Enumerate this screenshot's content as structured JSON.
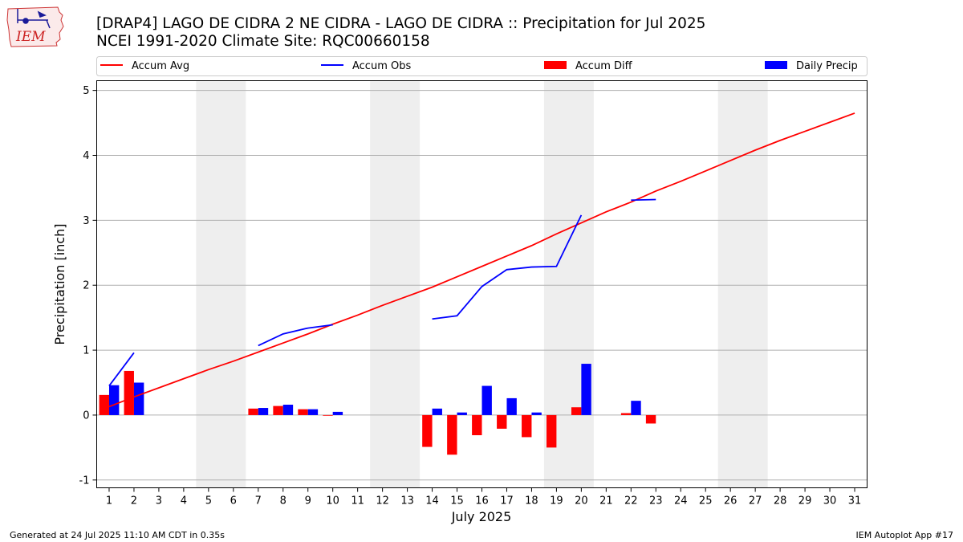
{
  "title_line1": "[DRAP4] LAGO DE CIDRA 2 NE CIDRA - LAGO DE CIDRA :: Precipitation for Jul 2025",
  "title_line2": "NCEI 1991-2020 Climate Site: RQC00660158",
  "logo_text": "IEM",
  "footer_left": "Generated at 24 Jul 2025 11:10 AM CDT in 0.35s",
  "footer_right": "IEM Autoplot App #17",
  "colors": {
    "accum_avg": "#ff0000",
    "accum_obs": "#0000ff",
    "accum_diff": "#ff0000",
    "daily_precip": "#0000ff",
    "weekend_shade": "#eeeeee",
    "grid": "#b0b0b0",
    "logo": "#cc2222"
  },
  "legend": [
    {
      "label": "Accum Avg",
      "kind": "line",
      "color": "#ff0000"
    },
    {
      "label": "Accum Obs",
      "kind": "line",
      "color": "#0000ff"
    },
    {
      "label": "Accum Diff",
      "kind": "bar",
      "color": "#ff0000"
    },
    {
      "label": "Daily Precip",
      "kind": "bar",
      "color": "#0000ff"
    }
  ],
  "chart_data": {
    "type": "bar",
    "xlabel": "July 2025",
    "ylabel": "Precipitation [inch]",
    "xlim": [
      0.5,
      31.5
    ],
    "ylim": [
      -1.12,
      5.15
    ],
    "yticks": [
      -1,
      0,
      1,
      2,
      3,
      4,
      5
    ],
    "xticks": [
      1,
      2,
      3,
      4,
      5,
      6,
      7,
      8,
      9,
      10,
      11,
      12,
      13,
      14,
      15,
      16,
      17,
      18,
      19,
      20,
      21,
      22,
      23,
      24,
      25,
      26,
      27,
      28,
      29,
      30,
      31
    ],
    "grid": "horizontal",
    "legend_position": "top",
    "weekend_shading": [
      [
        4.5,
        6.5
      ],
      [
        11.5,
        13.5
      ],
      [
        18.5,
        20.5
      ],
      [
        25.5,
        27.5
      ]
    ],
    "accum_avg": {
      "name": "Accum Avg",
      "x": [
        1,
        2,
        3,
        4,
        5,
        6,
        7,
        8,
        9,
        10,
        11,
        12,
        13,
        14,
        15,
        16,
        17,
        18,
        19,
        20,
        21,
        22,
        23,
        24,
        25,
        26,
        27,
        28,
        29,
        30,
        31
      ],
      "values": [
        0.13,
        0.28,
        0.42,
        0.56,
        0.7,
        0.83,
        0.97,
        1.11,
        1.25,
        1.4,
        1.54,
        1.69,
        1.83,
        1.97,
        2.13,
        2.29,
        2.45,
        2.61,
        2.79,
        2.96,
        3.13,
        3.28,
        3.45,
        3.6,
        3.76,
        3.92,
        4.08,
        4.23,
        4.37,
        4.51,
        4.65
      ]
    },
    "accum_obs": {
      "name": "Accum Obs",
      "segments": [
        {
          "x": [
            1,
            2
          ],
          "values": [
            0.45,
            0.96
          ]
        },
        {
          "x": [
            7,
            8,
            9,
            10
          ],
          "values": [
            1.07,
            1.25,
            1.34,
            1.39
          ]
        },
        {
          "x": [
            14,
            15,
            16,
            17,
            18,
            19,
            20
          ],
          "values": [
            1.48,
            1.53,
            1.98,
            2.24,
            2.28,
            2.29,
            3.08
          ]
        },
        {
          "x": [
            22,
            23
          ],
          "values": [
            3.31,
            3.32
          ]
        }
      ]
    },
    "accum_diff": {
      "name": "Accum Diff",
      "x": [
        1,
        2,
        7,
        8,
        9,
        10,
        14,
        15,
        16,
        17,
        18,
        19,
        20,
        22,
        23
      ],
      "values": [
        0.31,
        0.68,
        0.1,
        0.14,
        0.09,
        -0.01,
        -0.49,
        -0.61,
        -0.31,
        -0.21,
        -0.34,
        -0.5,
        0.12,
        0.03,
        -0.13
      ]
    },
    "daily_precip": {
      "name": "Daily Precip",
      "x": [
        1,
        2,
        7,
        8,
        9,
        10,
        14,
        15,
        16,
        17,
        18,
        20,
        22
      ],
      "values": [
        0.46,
        0.5,
        0.11,
        0.16,
        0.09,
        0.05,
        0.1,
        0.04,
        0.45,
        0.26,
        0.04,
        0.79,
        0.22
      ]
    }
  }
}
